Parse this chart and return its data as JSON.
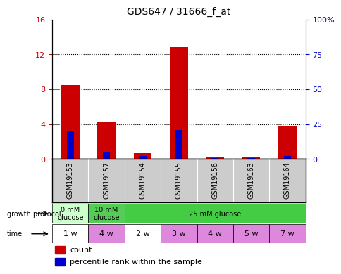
{
  "title": "GDS647 / 31666_f_at",
  "samples": [
    "GSM19153",
    "GSM19157",
    "GSM19154",
    "GSM19155",
    "GSM19156",
    "GSM19163",
    "GSM19164"
  ],
  "count_values": [
    8.5,
    4.3,
    0.7,
    12.8,
    0.3,
    0.3,
    3.8
  ],
  "percentile_values": [
    20.0,
    5.0,
    2.0,
    21.0,
    0.7,
    0.7,
    2.0
  ],
  "ylim_left": [
    0,
    16
  ],
  "ylim_right": [
    0,
    100
  ],
  "yticks_left": [
    0,
    4,
    8,
    12,
    16
  ],
  "ytick_labels_left": [
    "0",
    "4",
    "8",
    "12",
    "16"
  ],
  "yticks_right": [
    0,
    25,
    50,
    75,
    100
  ],
  "ytick_labels_right": [
    "0",
    "25",
    "50",
    "75",
    "100%"
  ],
  "count_color": "#cc0000",
  "percentile_color": "#0000cc",
  "growth_protocol_groups": [
    {
      "label": "0 mM\nglucose",
      "start": 0,
      "end": 1,
      "color": "#ccffcc"
    },
    {
      "label": "10 mM\nglucose",
      "start": 1,
      "end": 2,
      "color": "#55cc55"
    },
    {
      "label": "25 mM glucose",
      "start": 2,
      "end": 7,
      "color": "#44cc44"
    }
  ],
  "time_values": [
    "1 w",
    "4 w",
    "2 w",
    "3 w",
    "4 w",
    "5 w",
    "7 w"
  ],
  "time_colors": [
    "#ffffff",
    "#dd88dd",
    "#ffffff",
    "#dd88dd",
    "#dd88dd",
    "#dd88dd",
    "#dd88dd"
  ],
  "sample_bg_color": "#cccccc",
  "axis_color_left": "#cc0000",
  "axis_color_right": "#0000cc"
}
